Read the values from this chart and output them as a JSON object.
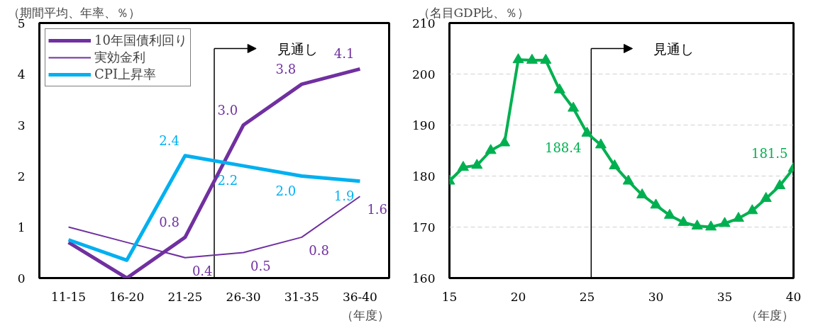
{
  "chart_data": [
    {
      "type": "line",
      "ylabel": "（期間平均、年率、％）",
      "xlabel": "（年度）",
      "categories": [
        "11-15",
        "16-20",
        "21-25",
        "26-30",
        "31-35",
        "36-40"
      ],
      "series": [
        {
          "name": "10年国債利回り",
          "color": "#7030a0",
          "values": [
            0.7,
            0.0,
            0.8,
            3.0,
            3.8,
            4.1
          ],
          "value_labels": [
            null,
            null,
            "0.8",
            "3.0",
            "3.8",
            "4.1"
          ]
        },
        {
          "name": "実効金利",
          "color": "#7030a0",
          "values": [
            1.0,
            0.7,
            0.4,
            0.5,
            0.8,
            1.6
          ],
          "value_labels": [
            null,
            null,
            "0.4",
            "0.5",
            "0.8",
            "1.6"
          ]
        },
        {
          "name": "CPI上昇率",
          "color": "#00b0f0",
          "values": [
            0.75,
            0.35,
            2.4,
            2.2,
            2.0,
            1.9
          ],
          "value_labels": [
            null,
            null,
            "2.4",
            "2.2",
            "2.0",
            "1.9"
          ]
        }
      ],
      "ylim": [
        0,
        5
      ],
      "yticks": [
        0,
        1,
        2,
        3,
        4,
        5
      ],
      "grid": false,
      "legend": "top left",
      "marker": "none",
      "annotations": [
        "見通し"
      ]
    },
    {
      "type": "line",
      "ylabel": "（名目GDP比、％）",
      "xlabel": "（年度）",
      "x": [
        15,
        16,
        17,
        18,
        19,
        20,
        21,
        22,
        23,
        24,
        25,
        26,
        27,
        28,
        29,
        30,
        31,
        32,
        33,
        34,
        35,
        36,
        37,
        38,
        39,
        40
      ],
      "series": [
        {
          "color": "#00b050",
          "values": [
            179.0,
            181.7,
            182.1,
            185.0,
            186.5,
            202.8,
            202.7,
            202.7,
            196.9,
            193.3,
            188.4,
            186.1,
            182.0,
            179.0,
            176.3,
            174.3,
            172.3,
            170.9,
            170.2,
            170.0,
            170.7,
            171.7,
            173.2,
            175.6,
            178.1,
            181.5
          ],
          "value_labels": [
            null,
            null,
            null,
            null,
            null,
            null,
            null,
            null,
            null,
            null,
            "188.4",
            null,
            null,
            null,
            null,
            null,
            null,
            null,
            null,
            null,
            null,
            null,
            null,
            null,
            null,
            "181.5"
          ]
        }
      ],
      "xlim": [
        15,
        40
      ],
      "xticks": [
        15,
        20,
        25,
        30,
        35,
        40
      ],
      "ylim": [
        160,
        210
      ],
      "yticks": [
        160,
        170,
        180,
        190,
        200,
        210
      ],
      "grid": "y",
      "legend": false,
      "marker": "triangle",
      "ref_lines": [
        {
          "axis": "x",
          "value": 25.3,
          "label": "見通し"
        }
      ]
    }
  ]
}
